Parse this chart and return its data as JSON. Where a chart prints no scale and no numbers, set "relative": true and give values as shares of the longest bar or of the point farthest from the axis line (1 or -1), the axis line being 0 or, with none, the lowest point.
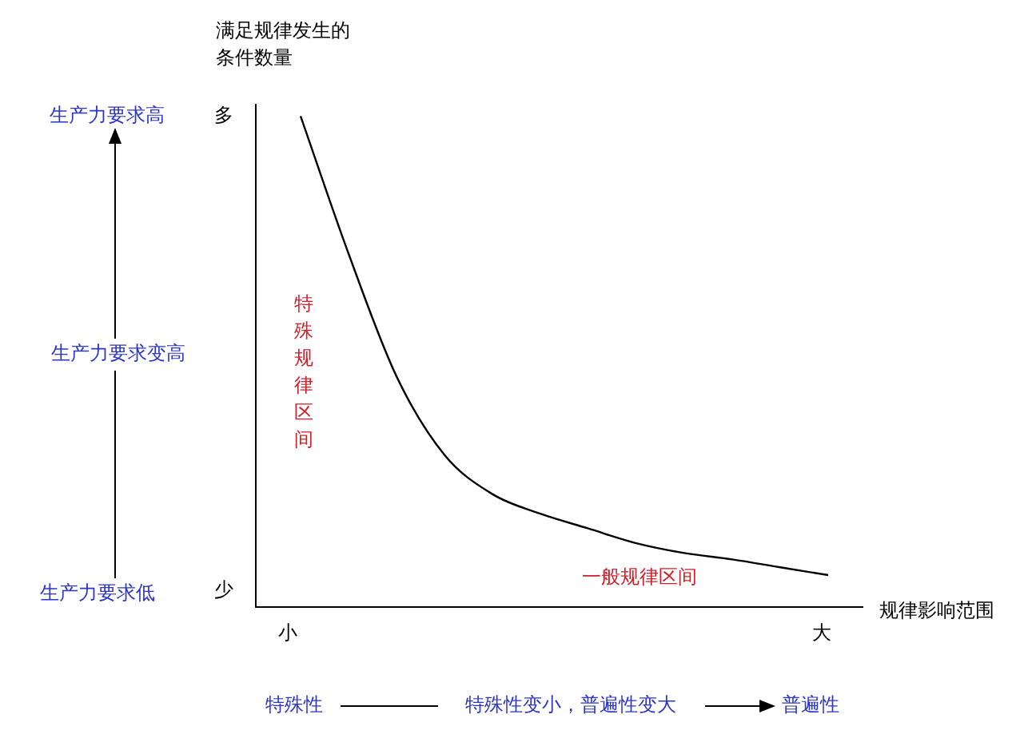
{
  "chart_data": {
    "type": "line",
    "ylabel": "满足规律发生的条件数量",
    "xlabel": "规律影响范围",
    "categories": [
      null,
      null,
      null,
      null,
      null,
      null,
      null,
      null,
      null,
      null,
      null,
      null
    ],
    "values": [
      1,
      0.72,
      0.47,
      0.31,
      0.23,
      0.19,
      0.16,
      0.13,
      0.11,
      0.097,
      0.081,
      0.065
    ],
    "color": "#000000",
    "relative": true,
    "marker": "none",
    "annotations": [
      "多",
      "少",
      "小",
      "大",
      "特殊规律区间",
      "一般规律区间",
      "生产力要求高",
      "生产力要求变高",
      "生产力要求低",
      "特殊性",
      "特殊性变小，普遍性变大",
      "普遍性"
    ]
  }
}
